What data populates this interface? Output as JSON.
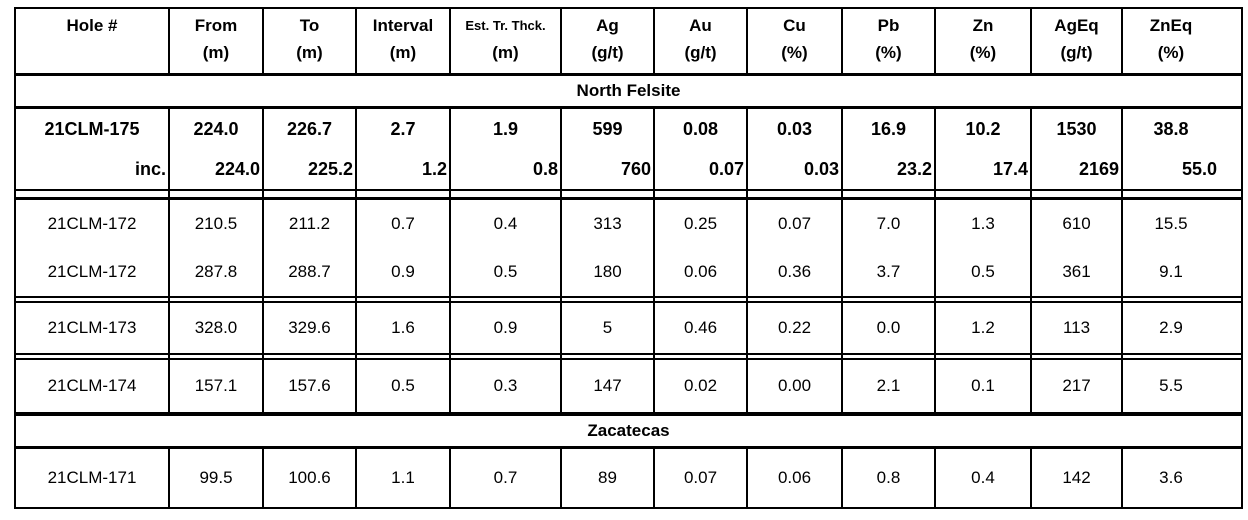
{
  "table": {
    "colors": {
      "border": "#000000",
      "text": "#000000",
      "background": "#ffffff"
    },
    "columns": [
      {
        "label": "Hole #",
        "unit": ""
      },
      {
        "label": "From",
        "unit": "(m)"
      },
      {
        "label": "To",
        "unit": "(m)"
      },
      {
        "label": "Interval",
        "unit": "(m)"
      },
      {
        "label": "Est. Tr. Thck.",
        "unit": "(m)",
        "small": true
      },
      {
        "label": "Ag",
        "unit": "(g/t)"
      },
      {
        "label": "Au",
        "unit": "(g/t)"
      },
      {
        "label": "Cu",
        "unit": "(%)"
      },
      {
        "label": "Pb",
        "unit": "(%)"
      },
      {
        "label": "Zn",
        "unit": "(%)"
      },
      {
        "label": "AgEq",
        "unit": "(g/t)"
      },
      {
        "label": "ZnEq",
        "unit": "(%)"
      }
    ],
    "sections": [
      {
        "type": "band",
        "title": "North Felsite"
      },
      {
        "type": "group",
        "style": "bold",
        "sep_after": "wide",
        "rows": [
          {
            "align": "center",
            "cells": [
              "21CLM-175",
              "224.0",
              "226.7",
              "2.7",
              "1.9",
              "599",
              "0.08",
              "0.03",
              "16.9",
              "10.2",
              "1530",
              "38.8"
            ]
          },
          {
            "align": "right",
            "cells": [
              "inc.",
              "224.0",
              "225.2",
              "1.2",
              "0.8",
              "760",
              "0.07",
              "0.03",
              "23.2",
              "17.4",
              "2169",
              "55.0"
            ]
          }
        ]
      },
      {
        "type": "group",
        "sep_after": "narrow",
        "rows": [
          {
            "align": "center",
            "cells": [
              "21CLM-172",
              "210.5",
              "211.2",
              "0.7",
              "0.4",
              "313",
              "0.25",
              "0.07",
              "7.0",
              "1.3",
              "610",
              "15.5"
            ]
          },
          {
            "align": "center",
            "cells": [
              "21CLM-172",
              "287.8",
              "288.7",
              "0.9",
              "0.5",
              "180",
              "0.06",
              "0.36",
              "3.7",
              "0.5",
              "361",
              "9.1"
            ]
          }
        ]
      },
      {
        "type": "group",
        "sep_after": "narrow",
        "rows": [
          {
            "align": "center",
            "cells": [
              "21CLM-173",
              "328.0",
              "329.6",
              "1.6",
              "0.9",
              "5",
              "0.46",
              "0.22",
              "0.0",
              "1.2",
              "113",
              "2.9"
            ]
          }
        ]
      },
      {
        "type": "group",
        "rows": [
          {
            "align": "center",
            "cells": [
              "21CLM-174",
              "157.1",
              "157.6",
              "0.5",
              "0.3",
              "147",
              "0.02",
              "0.00",
              "2.1",
              "0.1",
              "217",
              "5.5"
            ]
          }
        ]
      },
      {
        "type": "band",
        "title": "Zacatecas"
      },
      {
        "type": "group",
        "rows": [
          {
            "align": "center",
            "cells": [
              "21CLM-171",
              "99.5",
              "100.6",
              "1.1",
              "0.7",
              "89",
              "0.07",
              "0.06",
              "0.8",
              "0.4",
              "142",
              "3.6"
            ]
          }
        ]
      }
    ]
  }
}
